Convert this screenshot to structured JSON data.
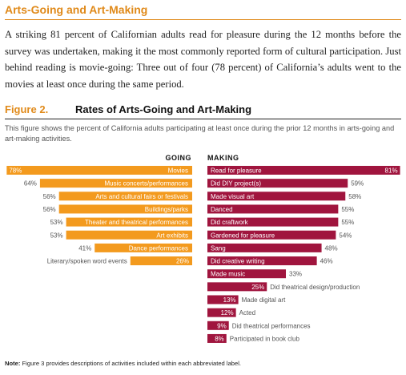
{
  "section_heading": "Arts-Going and Art-Making",
  "paragraph": "A striking 81 percent of Californian adults read for pleasure during the 12 months before the survey was undertaken, making it the most commonly reported form of cultural participation. Just behind reading is movie-going: Three out of four (78 percent) of California’s adults went to the movies at least once during the same period.",
  "figure": {
    "label": "Figure 2.",
    "title": "Rates of Arts-Going and Art-Making",
    "description": "This figure shows the percent of California adults participating at least once during the prior 12 months in arts-going and art-making activities."
  },
  "note": {
    "prefix": "Note:",
    "text": " Figure 3 provides descriptions of activities included within each abbreviated label."
  },
  "chart_data": {
    "type": "bar",
    "colors": {
      "going": "#f39a1e",
      "making": "#a0153e"
    },
    "xlim": [
      0,
      100
    ],
    "series": [
      {
        "name": "GOING",
        "direction": "left",
        "categories": [
          "Movies",
          "Music concerts/performances",
          "Arts and cultural fairs or festivals",
          "Buildings/parks",
          "Theater and theatrical performances",
          "Art exhibits",
          "Dance performances",
          "Literary/spoken word events"
        ],
        "values": [
          78,
          64,
          56,
          56,
          53,
          53,
          41,
          26
        ],
        "value_labels": [
          "78%",
          "64%",
          "56%",
          "56%",
          "53%",
          "53%",
          "41%",
          "26%"
        ]
      },
      {
        "name": "MAKING",
        "direction": "right",
        "categories": [
          "Read for pleasure",
          "Did DIY project(s)",
          "Made visual art",
          "Danced",
          "Did craftwork",
          "Gardened for pleasure",
          "Sang",
          "Did creative writing",
          "Made music",
          "Did theatrical design/production",
          "Made digital art",
          "Acted",
          "Did theatrical performances",
          "Participated in book club"
        ],
        "values": [
          81,
          59,
          58,
          55,
          55,
          54,
          48,
          46,
          33,
          25,
          13,
          12,
          9,
          8
        ],
        "value_labels": [
          "81%",
          "59%",
          "58%",
          "55%",
          "55%",
          "54%",
          "48%",
          "46%",
          "33%",
          "25%",
          "13%",
          "12%",
          "9%",
          "8%"
        ]
      }
    ]
  }
}
